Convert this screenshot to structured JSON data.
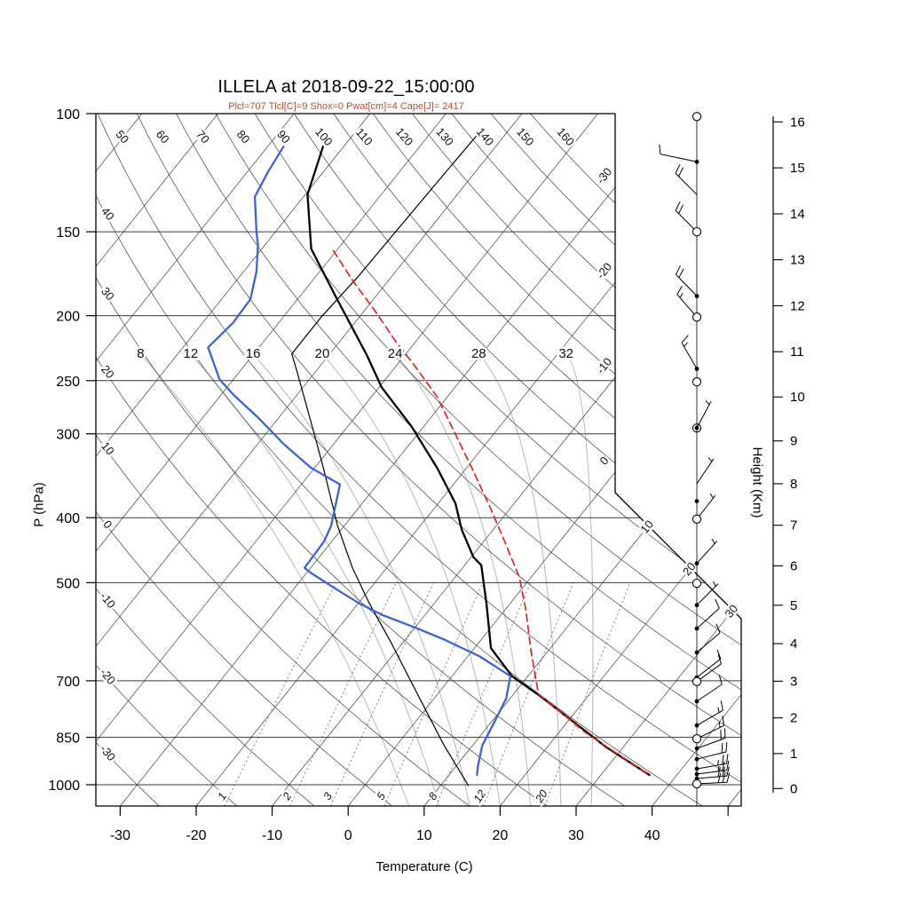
{
  "title": "ILLELA at 2018-09-22_15:00:00",
  "subtitle": "Plcl=707 Tlcl[C]=9 Shox=0 Pwat[cm]=4 Cape[J]= 2417",
  "axes": {
    "pressure": {
      "label": "P (hPa)",
      "ticks": [
        100,
        150,
        200,
        250,
        300,
        400,
        500,
        700,
        850,
        1000
      ]
    },
    "temperature": {
      "label": "Temperature (C)",
      "ticks": [
        -30,
        -20,
        -10,
        0,
        10,
        20,
        30,
        40
      ],
      "extra_ticks": [
        50
      ]
    },
    "height": {
      "label": "Height (Km)",
      "ticks": [
        0,
        1,
        2,
        3,
        4,
        5,
        6,
        7,
        8,
        9,
        10,
        11,
        12,
        13,
        14,
        15,
        16
      ]
    }
  },
  "colors": {
    "temperature": "#000000",
    "dewpoint": "#3A64D8",
    "parcel": "#E3241D",
    "aux": "#000000",
    "subtitle": "#A9502F",
    "grid": "#4d4d4d",
    "pressure_line": "#3a3a3a",
    "moist": "#bcbcbc",
    "mixing": "#8a8a8a"
  },
  "chart_data": {
    "type": "skewt",
    "station": "ILLELA",
    "datetime": "2018-09-22_15:00:00",
    "parameters": {
      "Plcl": 707,
      "Tlcl_C": 9,
      "Shox": 0,
      "Pwat_cm": 4,
      "Cape_J": 2417
    },
    "isotherm_label_values": [
      -30,
      -20,
      -10,
      0,
      10,
      20,
      30
    ],
    "dry_adiabat_values": [
      -30,
      -20,
      -10,
      0,
      10,
      20,
      30,
      40,
      50,
      60,
      70,
      80,
      90,
      100,
      110,
      120,
      130,
      140,
      150,
      160
    ],
    "moist_adiabat_values": [
      8,
      12,
      16,
      20,
      24,
      28,
      32
    ],
    "moist_adiabat_top_temps_at_228hPa": [
      -74.9,
      -68.3,
      -60.1,
      -51.0,
      -41.4,
      -30.4,
      -18.9
    ],
    "mixing_ratio_values": [
      1,
      2,
      3,
      5,
      8,
      12,
      20
    ],
    "temperature_profile": [
      [
        112,
        -72.7
      ],
      [
        132,
        -69.7
      ],
      [
        159,
        -63.5
      ],
      [
        189,
        -54.8
      ],
      [
        229,
        -45.0
      ],
      [
        256,
        -39.6
      ],
      [
        292,
        -31.7
      ],
      [
        337,
        -23.9
      ],
      [
        381,
        -17.7
      ],
      [
        417,
        -14.1
      ],
      [
        458,
        -9.7
      ],
      [
        471,
        -7.8
      ],
      [
        537,
        -3.1
      ],
      [
        626,
        2.2
      ],
      [
        689,
        7.9
      ],
      [
        735,
        13.4
      ],
      [
        879,
        27.8
      ],
      [
        967,
        36.4
      ]
    ],
    "dewpoint_profile": [
      [
        112,
        -77.9
      ],
      [
        122,
        -77.3
      ],
      [
        133,
        -76.4
      ],
      [
        150,
        -72.5
      ],
      [
        157,
        -70.9
      ],
      [
        172,
        -68.3
      ],
      [
        189,
        -66.2
      ],
      [
        205,
        -66.0
      ],
      [
        223,
        -66.7
      ],
      [
        249,
        -61.8
      ],
      [
        263,
        -58.2
      ],
      [
        283,
        -52.9
      ],
      [
        311,
        -46.5
      ],
      [
        337,
        -40.5
      ],
      [
        357,
        -34.9
      ],
      [
        412,
        -31.7
      ],
      [
        434,
        -31.0
      ],
      [
        475,
        -30.8
      ],
      [
        483,
        -29.5
      ],
      [
        510,
        -24.6
      ],
      [
        536,
        -20.0
      ],
      [
        558,
        -15.7
      ],
      [
        583,
        -10.0
      ],
      [
        607,
        -5.0
      ],
      [
        644,
        1.6
      ],
      [
        689,
        7.7
      ],
      [
        744,
        9.5
      ],
      [
        805,
        10.4
      ],
      [
        874,
        11.3
      ],
      [
        938,
        12.9
      ],
      [
        967,
        13.7
      ]
    ],
    "parcel_path": [
      [
        160,
        -60.4
      ],
      [
        177,
        -54.8
      ],
      [
        197,
        -48.5
      ],
      [
        219,
        -42.5
      ],
      [
        235,
        -38.2
      ],
      [
        264,
        -31.4
      ],
      [
        301,
        -24.9
      ],
      [
        340,
        -18.9
      ],
      [
        388,
        -12.5
      ],
      [
        438,
        -6.8
      ],
      [
        490,
        -1.6
      ],
      [
        548,
        2.7
      ],
      [
        631,
        7.7
      ],
      [
        733,
        13.3
      ],
      [
        836,
        23.5
      ],
      [
        967,
        36.4
      ]
    ],
    "aux_profile": [
      [
        105,
        -53.6
      ],
      [
        124,
        -53.9
      ],
      [
        151,
        -54.2
      ],
      [
        175,
        -54.4
      ],
      [
        201,
        -55.0
      ],
      [
        228,
        -55.0
      ],
      [
        242,
        -52.5
      ],
      [
        298,
        -43.9
      ],
      [
        340,
        -38.5
      ],
      [
        411,
        -30.9
      ],
      [
        475,
        -24.5
      ],
      [
        536,
        -18.6
      ],
      [
        612,
        -11.7
      ],
      [
        729,
        -2.9
      ],
      [
        871,
        6.1
      ],
      [
        1003,
        13.7
      ]
    ],
    "wind_levels": [
      [
        101,
        "circ",
        null,
        0,
        0
      ],
      [
        118,
        "dot",
        168,
        1,
        0
      ],
      [
        132,
        "none",
        135,
        2,
        0
      ],
      [
        150,
        "circ",
        135,
        2,
        0
      ],
      [
        187,
        "dot",
        134,
        2,
        0
      ],
      [
        201,
        "circ",
        131,
        1,
        1
      ],
      [
        240,
        "dot",
        120,
        1,
        1
      ],
      [
        251,
        "circ",
        null,
        0,
        0
      ],
      [
        294,
        "dc",
        62,
        0,
        1
      ],
      [
        356,
        "none",
        56,
        0,
        1
      ],
      [
        378,
        "dot",
        null,
        0,
        0
      ],
      [
        402,
        "circ",
        52,
        0,
        1
      ],
      [
        468,
        "dot",
        48,
        0,
        1
      ],
      [
        501,
        "circ",
        null,
        0,
        0
      ],
      [
        540,
        "dot",
        45,
        0,
        1
      ],
      [
        585,
        "dot",
        42,
        1,
        0
      ],
      [
        635,
        "dot",
        40,
        1,
        0
      ],
      [
        692,
        "dot",
        38,
        1,
        0
      ],
      [
        702,
        "circ",
        36,
        1,
        0
      ],
      [
        751,
        "dot",
        34,
        1,
        0
      ],
      [
        816,
        "dot",
        30,
        1,
        1
      ],
      [
        854,
        "circ",
        26,
        1,
        1
      ],
      [
        883,
        "dot",
        20,
        2,
        0
      ],
      [
        916,
        "dot",
        14,
        2,
        0
      ],
      [
        947,
        "dot",
        10,
        2,
        1
      ],
      [
        964,
        "dot",
        7,
        2,
        1
      ],
      [
        979,
        "dot",
        5,
        3,
        0
      ],
      [
        997,
        "circ",
        3,
        3,
        0
      ]
    ]
  }
}
